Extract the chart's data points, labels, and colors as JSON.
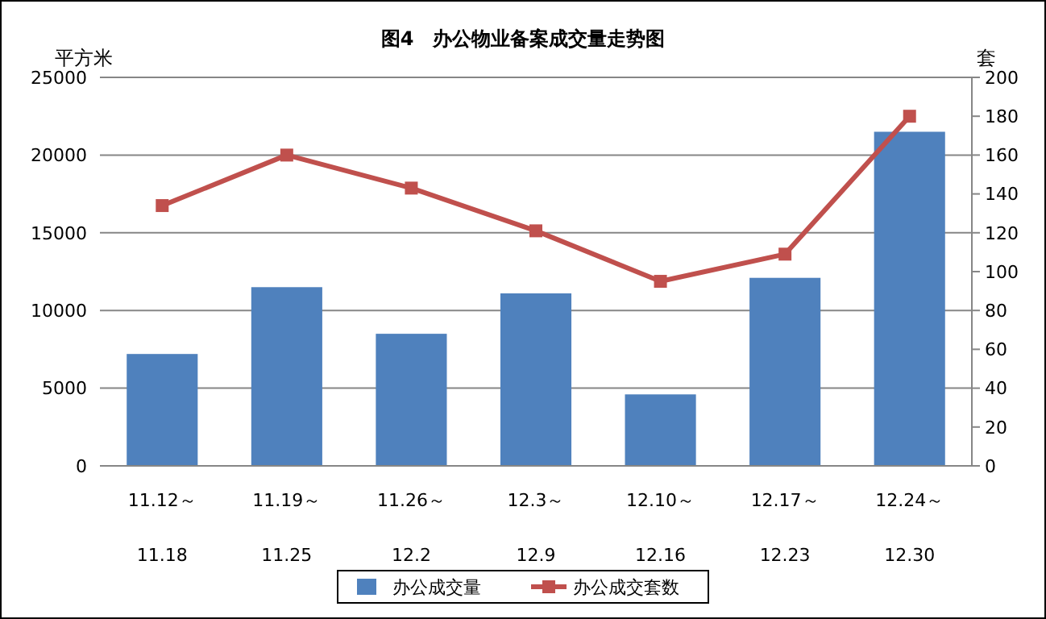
{
  "chart_data": {
    "type": "bar",
    "title": "图4　办公物业备案成交量走势图",
    "ylabel": "平方米",
    "y2label": "套",
    "categories": [
      "11.12～\n11.18",
      "11.19～\n11.25",
      "11.26～\n12.2",
      "12.3～\n12.9",
      "12.10～\n12.16",
      "12.17～\n12.23",
      "12.24～\n12.30"
    ],
    "series": [
      {
        "name": "办公成交量",
        "color": "#4f81bd",
        "values": [
          7200,
          11500,
          8500,
          11100,
          4600,
          12100,
          21500
        ]
      },
      {
        "name": "办公成交套数",
        "type": "line",
        "axis": "y2",
        "color": "#c0504d",
        "marker": "square",
        "values": [
          134,
          160,
          143,
          121,
          95,
          109,
          180
        ]
      }
    ],
    "ylim": [
      0,
      25000
    ],
    "yticks": [
      0,
      5000,
      10000,
      15000,
      20000,
      25000
    ],
    "y2lim": [
      0,
      200
    ],
    "y2ticks": [
      0,
      20,
      40,
      60,
      80,
      100,
      120,
      140,
      160,
      180,
      200
    ],
    "grid": "y",
    "legend": "bottom"
  }
}
